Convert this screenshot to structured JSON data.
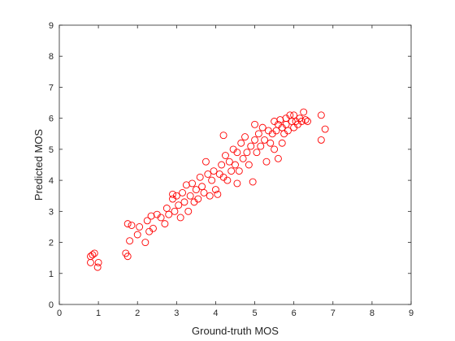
{
  "chart_data": {
    "type": "scatter",
    "xlabel": "Ground-truth MOS",
    "ylabel": "Predicted MOS",
    "xlim": [
      0,
      9
    ],
    "ylim": [
      0,
      9
    ],
    "xticks": [
      0,
      1,
      2,
      3,
      4,
      5,
      6,
      7,
      8,
      9
    ],
    "yticks": [
      0,
      1,
      2,
      3,
      4,
      5,
      6,
      7,
      8,
      9
    ],
    "color": "#ff0000",
    "x": [
      0.8,
      0.85,
      0.9,
      0.8,
      1.0,
      0.98,
      1.7,
      1.75,
      1.75,
      1.85,
      1.8,
      2.05,
      2.0,
      2.2,
      2.25,
      2.3,
      2.4,
      2.35,
      2.5,
      2.6,
      2.7,
      2.75,
      2.8,
      2.9,
      2.95,
      3.0,
      3.05,
      3.1,
      3.15,
      3.2,
      3.3,
      3.35,
      3.4,
      3.45,
      3.5,
      3.55,
      3.6,
      3.65,
      3.7,
      3.75,
      3.8,
      3.85,
      3.9,
      3.95,
      4.0,
      4.05,
      4.1,
      4.15,
      4.2,
      4.2,
      4.25,
      4.3,
      4.35,
      4.4,
      4.45,
      4.5,
      4.55,
      4.6,
      4.65,
      4.7,
      4.75,
      4.8,
      4.85,
      4.9,
      4.95,
      5.0,
      5.0,
      5.05,
      5.1,
      5.15,
      5.2,
      5.25,
      5.3,
      5.35,
      5.4,
      5.45,
      5.5,
      5.5,
      5.55,
      5.6,
      5.6,
      5.65,
      5.7,
      5.75,
      5.8,
      5.8,
      5.85,
      5.9,
      5.95,
      6.0,
      6.0,
      6.05,
      6.1,
      6.15,
      6.2,
      6.25,
      6.3,
      6.35,
      6.7,
      6.7,
      6.8,
      4.55,
      3.25,
      2.9,
      5.7
    ],
    "values": [
      1.55,
      1.6,
      1.65,
      1.35,
      1.35,
      1.2,
      1.65,
      1.55,
      2.6,
      2.55,
      2.05,
      2.5,
      2.25,
      2.0,
      2.7,
      2.35,
      2.45,
      2.85,
      2.9,
      2.8,
      2.6,
      3.1,
      2.9,
      3.4,
      3.0,
      3.5,
      3.2,
      2.8,
      3.6,
      3.3,
      3.0,
      3.5,
      3.9,
      3.3,
      3.7,
      3.4,
      4.1,
      3.8,
      3.6,
      4.6,
      4.2,
      3.5,
      4.0,
      4.3,
      3.7,
      3.55,
      4.2,
      4.5,
      4.1,
      5.45,
      4.8,
      4.0,
      4.6,
      4.3,
      5.0,
      4.5,
      4.9,
      4.3,
      5.2,
      4.7,
      5.4,
      4.9,
      4.5,
      5.1,
      3.95,
      5.8,
      5.3,
      4.9,
      5.5,
      5.1,
      5.7,
      5.3,
      4.6,
      5.6,
      5.2,
      5.5,
      5.0,
      5.9,
      5.6,
      5.8,
      4.7,
      5.95,
      5.7,
      5.5,
      6.0,
      5.8,
      5.6,
      6.1,
      5.9,
      5.7,
      6.1,
      5.9,
      5.8,
      6.0,
      5.9,
      6.2,
      5.95,
      5.9,
      6.1,
      5.3,
      5.65,
      3.9,
      3.85,
      3.55,
      5.2
    ]
  }
}
